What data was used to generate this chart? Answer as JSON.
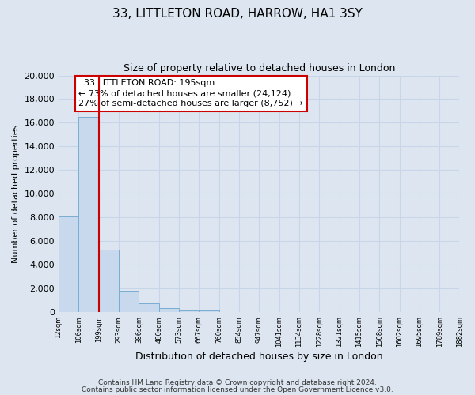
{
  "title": "33, LITTLETON ROAD, HARROW, HA1 3SY",
  "subtitle": "Size of property relative to detached houses in London",
  "bar_heights": [
    8100,
    16500,
    5300,
    1800,
    700,
    300,
    150,
    100,
    0,
    0,
    0,
    0,
    0,
    0,
    0,
    0,
    0,
    0,
    0,
    0
  ],
  "bin_labels": [
    "12sqm",
    "106sqm",
    "199sqm",
    "293sqm",
    "386sqm",
    "480sqm",
    "573sqm",
    "667sqm",
    "760sqm",
    "854sqm",
    "947sqm",
    "1041sqm",
    "1134sqm",
    "1228sqm",
    "1321sqm",
    "1415sqm",
    "1508sqm",
    "1602sqm",
    "1695sqm",
    "1789sqm",
    "1882sqm"
  ],
  "bar_color": "#c8d8ed",
  "bar_edge_color": "#7aadd4",
  "vline_x": 2,
  "vline_color": "#cc0000",
  "ylim": [
    0,
    20000
  ],
  "yticks": [
    0,
    2000,
    4000,
    6000,
    8000,
    10000,
    12000,
    14000,
    16000,
    18000,
    20000
  ],
  "xlabel": "Distribution of detached houses by size in London",
  "ylabel": "Number of detached properties",
  "annotation_title": "33 LITTLETON ROAD: 195sqm",
  "annotation_line1": "← 73% of detached houses are smaller (24,124)",
  "annotation_line2": "27% of semi-detached houses are larger (8,752) →",
  "annotation_box_color": "#ffffff",
  "annotation_box_edge_color": "#cc0000",
  "grid_color": "#c8d4e8",
  "background_color": "#dde6f0",
  "footer_line1": "Contains HM Land Registry data © Crown copyright and database right 2024.",
  "footer_line2": "Contains public sector information licensed under the Open Government Licence v3.0."
}
